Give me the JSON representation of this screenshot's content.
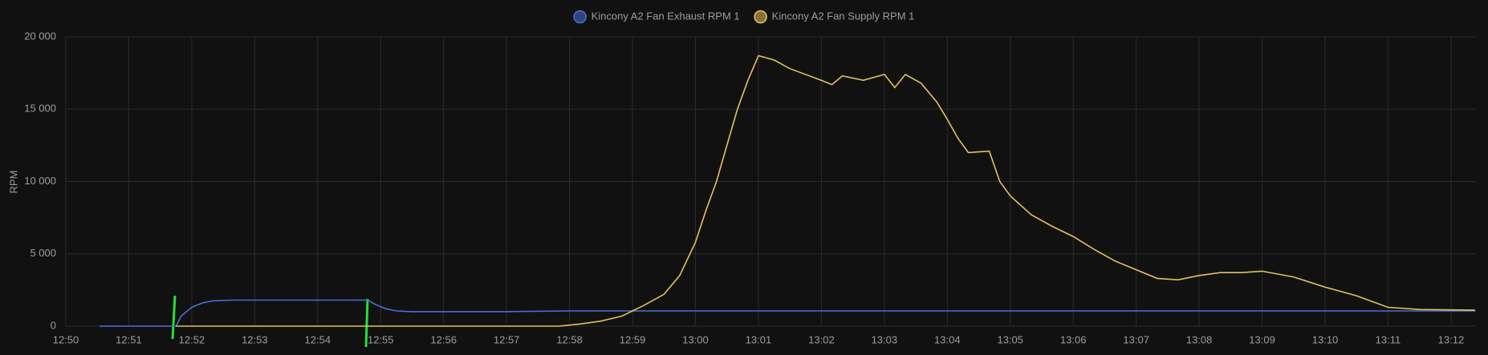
{
  "chart_data": {
    "type": "line",
    "y_label": "RPM",
    "xlim": [
      "12:50:00",
      "13:12:23"
    ],
    "xticks": [
      "12:50",
      "12:51",
      "12:52",
      "12:53",
      "12:54",
      "12:55",
      "12:56",
      "12:57",
      "12:58",
      "12:59",
      "13:00",
      "13:01",
      "13:02",
      "13:03",
      "13:04",
      "13:05",
      "13:06",
      "13:07",
      "13:08",
      "13:09",
      "13:10",
      "13:11",
      "13:12"
    ],
    "ylim": [
      0,
      20000
    ],
    "yticks": [
      {
        "value": 0,
        "label": "0"
      },
      {
        "value": 5000,
        "label": "5 000"
      },
      {
        "value": 10000,
        "label": "10 000"
      },
      {
        "value": 15000,
        "label": "15 000"
      },
      {
        "value": 20000,
        "label": "20 000"
      }
    ],
    "grid": true,
    "series": [
      {
        "name": "Kincony A2 Fan Exhaust RPM 1",
        "color": "#4a6fd6",
        "x": [
          "12:50:32",
          "12:51:45",
          "12:51:50",
          "12:52:00",
          "12:52:10",
          "12:52:20",
          "12:52:40",
          "12:54:48",
          "12:54:55",
          "12:55:05",
          "12:55:15",
          "12:55:30",
          "12:57:00",
          "12:58:00",
          "13:00:00",
          "13:02:00",
          "13:04:00",
          "13:06:00",
          "13:08:00",
          "13:10:00",
          "13:12:23"
        ],
        "values": [
          0,
          0,
          700,
          1300,
          1600,
          1750,
          1800,
          1800,
          1500,
          1200,
          1050,
          1000,
          1000,
          1050,
          1050,
          1050,
          1050,
          1050,
          1050,
          1050,
          1050
        ]
      },
      {
        "name": "Kincony A2 Fan Supply RPM 1",
        "color": "#e4c15a",
        "x": [
          "12:51:45",
          "12:57:50",
          "12:58:10",
          "12:58:30",
          "12:58:50",
          "12:59:10",
          "12:59:30",
          "12:59:45",
          "13:00:00",
          "13:00:10",
          "13:00:20",
          "13:00:30",
          "13:00:40",
          "13:00:50",
          "13:01:00",
          "13:01:15",
          "13:01:30",
          "13:02:00",
          "13:02:10",
          "13:02:20",
          "13:02:40",
          "13:03:00",
          "13:03:10",
          "13:03:20",
          "13:03:35",
          "13:03:50",
          "13:04:00",
          "13:04:10",
          "13:04:20",
          "13:04:40",
          "13:04:50",
          "13:05:00",
          "13:05:20",
          "13:05:40",
          "13:06:00",
          "13:06:20",
          "13:06:40",
          "13:07:00",
          "13:07:20",
          "13:07:40",
          "13:08:00",
          "13:08:20",
          "13:08:40",
          "13:09:00",
          "13:09:30",
          "13:10:00",
          "13:10:30",
          "13:11:00",
          "13:11:30",
          "13:12:23"
        ],
        "values": [
          0,
          0,
          150,
          350,
          700,
          1400,
          2200,
          3500,
          5800,
          8000,
          10000,
          12500,
          15000,
          17000,
          18700,
          18400,
          17800,
          17000,
          16700,
          17300,
          17000,
          17400,
          16500,
          17400,
          16800,
          15500,
          14300,
          13000,
          12000,
          12100,
          10000,
          9000,
          7700,
          6900,
          6200,
          5300,
          4500,
          3900,
          3300,
          3200,
          3500,
          3700,
          3700,
          3800,
          3400,
          2700,
          2100,
          1300,
          1150,
          1100
        ]
      }
    ]
  }
}
